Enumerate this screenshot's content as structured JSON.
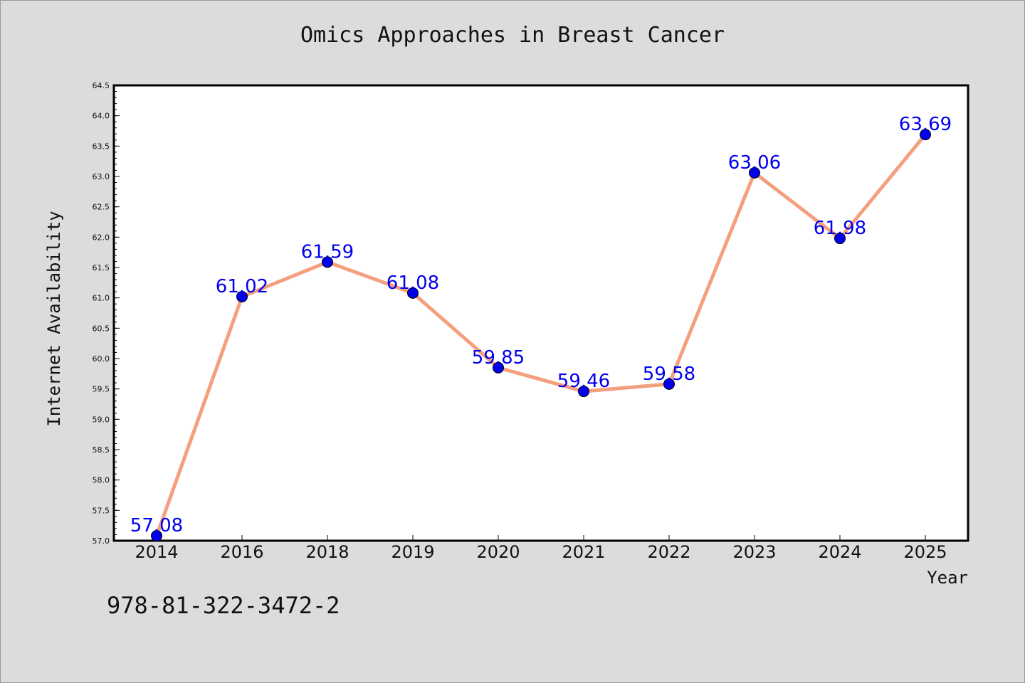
{
  "title": "Omics Approaches in Breast Cancer",
  "isbn": "978-81-322-3472-2",
  "chart_data": {
    "type": "line",
    "title": "Omics Approaches in Breast Cancer",
    "xlabel": "Year",
    "ylabel": "Internet Availability",
    "categories": [
      "2014",
      "2016",
      "2018",
      "2019",
      "2020",
      "2021",
      "2022",
      "2023",
      "2024",
      "2025"
    ],
    "series": [
      {
        "values": [
          57.08,
          61.02,
          61.59,
          61.08,
          59.85,
          59.46,
          59.58,
          63.06,
          61.98,
          63.69
        ],
        "data_labels": [
          "57.08",
          "61.02",
          "61.59",
          "61.08",
          "59.85",
          "59.46",
          "59.58",
          "63.06",
          "61.98",
          "63.69"
        ]
      }
    ],
    "ylim": [
      57.0,
      64.5
    ],
    "yticks": [
      "57.0",
      "57.5",
      "58.0",
      "58.5",
      "59.0",
      "59.5",
      "60.0",
      "60.5",
      "61.0",
      "61.5",
      "62.0",
      "62.5",
      "63.0",
      "63.5",
      "64.0",
      "64.5"
    ],
    "grid": false,
    "colors": {
      "line": "#f4a07e",
      "marker": "#0000ee",
      "label": "#0000ee",
      "plot_bg": "#ffffff"
    }
  }
}
